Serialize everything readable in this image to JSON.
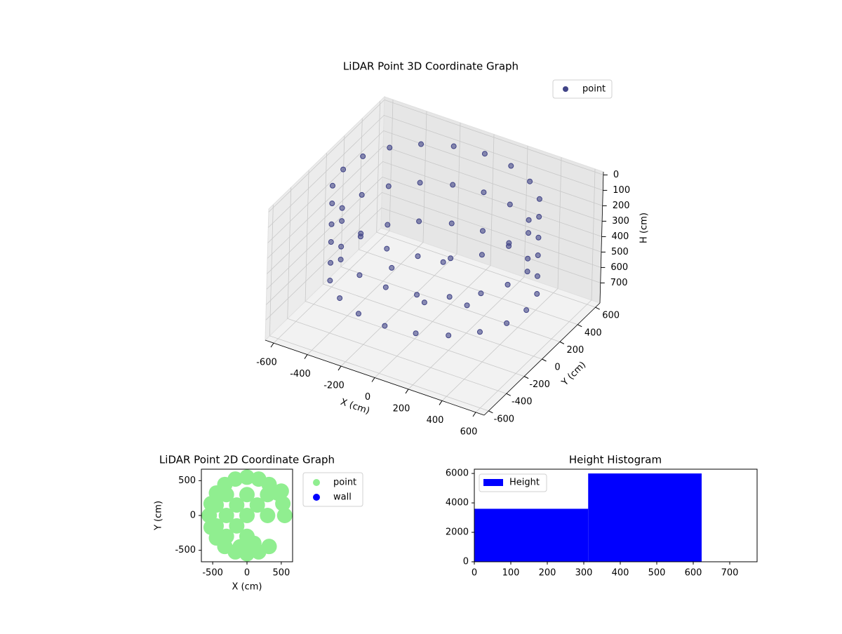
{
  "chart_data": [
    {
      "type": "scatter3d",
      "title": "LiDAR Point 3D Coordinate Graph",
      "xlabel": "X (cm)",
      "ylabel": "Y (cm)",
      "zlabel": "H (cm)",
      "xlim": [
        -650,
        650
      ],
      "ylim": [
        -650,
        650
      ],
      "zlim": [
        830,
        -20
      ],
      "xticks": [
        -600,
        -400,
        -200,
        0,
        200,
        400,
        600
      ],
      "yticks": [
        -600,
        -400,
        -200,
        0,
        200,
        400,
        600
      ],
      "zticks": [
        0,
        100,
        200,
        300,
        400,
        500,
        600,
        700
      ],
      "grid": true,
      "legend": "upper right",
      "series": [
        {
          "name": "point",
          "color": "#414487",
          "x": [
            550,
            523,
            445,
            323,
            170,
            0,
            -170,
            -323,
            -445,
            -523,
            -550,
            -523,
            -445,
            -323,
            -170,
            0,
            170,
            323,
            445,
            523,
            550,
            523,
            445,
            323,
            170,
            0,
            -170,
            -323,
            -445,
            -523,
            -550,
            -523,
            -445,
            -323,
            -170,
            0,
            170,
            323,
            445,
            523,
            550,
            523,
            445,
            323,
            170,
            0,
            -170,
            -323,
            -445,
            -523,
            -550,
            -523,
            -445,
            -323,
            -170,
            0,
            170,
            323,
            445,
            523,
            -300,
            0,
            200,
            -100
          ],
          "y": [
            0,
            170,
            323,
            445,
            523,
            550,
            523,
            445,
            323,
            170,
            0,
            -170,
            -323,
            -445,
            -523,
            -550,
            -523,
            -445,
            -323,
            -170,
            0,
            170,
            323,
            445,
            523,
            550,
            523,
            445,
            323,
            170,
            0,
            -170,
            -323,
            -445,
            -523,
            -550,
            -523,
            -445,
            -323,
            -170,
            0,
            170,
            323,
            445,
            523,
            550,
            523,
            445,
            323,
            170,
            0,
            -170,
            -323,
            -445,
            -523,
            -550,
            -523,
            -445,
            -323,
            -170,
            100,
            -100,
            0,
            300
          ],
          "z": [
            50,
            50,
            50,
            50,
            50,
            50,
            50,
            50,
            50,
            50,
            50,
            50,
            50,
            50,
            50,
            50,
            50,
            50,
            50,
            50,
            300,
            300,
            300,
            300,
            300,
            300,
            300,
            300,
            300,
            300,
            300,
            300,
            300,
            300,
            300,
            300,
            300,
            300,
            300,
            300,
            550,
            550,
            550,
            550,
            550,
            550,
            550,
            550,
            550,
            550,
            550,
            550,
            550,
            550,
            550,
            550,
            550,
            550,
            550,
            550,
            650,
            650,
            650,
            650
          ]
        }
      ]
    },
    {
      "type": "scatter",
      "title": "LiDAR Point 2D Coordinate Graph",
      "xlabel": "X (cm)",
      "ylabel": "Y (cm)",
      "xlim": [
        -665,
        665
      ],
      "ylim": [
        -665,
        665
      ],
      "xticks": [
        -500,
        0,
        500
      ],
      "yticks": [
        -500,
        0,
        500
      ],
      "legend": "outside upper left",
      "series": [
        {
          "name": "point",
          "color": "#90ee90",
          "x": [
            550,
            523,
            445,
            323,
            170,
            0,
            -170,
            -323,
            -445,
            -523,
            -550,
            -523,
            -445,
            -323,
            -170,
            0,
            170,
            323,
            0,
            -300,
            300,
            0,
            0,
            -300,
            -300,
            300,
            -150,
            150,
            -150,
            -450,
            -450,
            -100,
            100,
            500
          ],
          "y": [
            0,
            170,
            323,
            445,
            523,
            550,
            523,
            445,
            323,
            170,
            0,
            -170,
            -323,
            -445,
            -523,
            -550,
            -523,
            -445,
            0,
            0,
            0,
            300,
            -300,
            300,
            -300,
            300,
            -150,
            150,
            150,
            -150,
            150,
            -450,
            -400,
            350
          ]
        },
        {
          "name": "wall",
          "color": "#0000ff",
          "x": [],
          "y": []
        }
      ]
    },
    {
      "type": "histogram",
      "title": "Height Histogram",
      "bins": [
        0,
        312,
        623
      ],
      "counts": [
        3600,
        6000
      ],
      "name": "Height",
      "color": "#0000ff",
      "xlim": [
        0,
        775
      ],
      "ylim": [
        0,
        6290
      ],
      "xticks": [
        0,
        100,
        200,
        300,
        400,
        500,
        600,
        700
      ],
      "yticks": [
        0,
        2000,
        4000,
        6000
      ],
      "legend": "upper left"
    }
  ]
}
